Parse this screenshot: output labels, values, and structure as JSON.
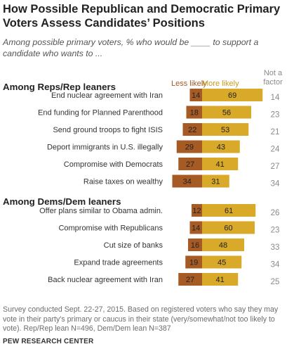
{
  "title": "How Possible Republican and Democratic Primary Voters Assess Candidates’ Positions",
  "subtitle": "Among possible primary voters, % who would be ____ to support a candidate who wants to ...",
  "headers": {
    "less_likely": "Less likely",
    "more_likely": "More likely",
    "not_a_factor": "Not a factor"
  },
  "colors": {
    "less_likely": "#a65a24",
    "more_likely": "#d9a929",
    "not_a_factor_text": "#8a8a8a"
  },
  "chart_data": {
    "type": "bar",
    "subtype": "diverging-stacked",
    "series_names": [
      "Less likely",
      "More likely",
      "Not a factor"
    ],
    "groups": [
      {
        "name": "Among Reps/Rep leaners",
        "rows": [
          {
            "label": "End nuclear agreement with Iran",
            "less": 14,
            "more": 69,
            "not_factor": 14
          },
          {
            "label": "End funding for Planned Parenthood",
            "less": 18,
            "more": 56,
            "not_factor": 23
          },
          {
            "label": "Send ground troops to fight ISIS",
            "less": 22,
            "more": 53,
            "not_factor": 21
          },
          {
            "label": "Deport immigrants in U.S. illegally",
            "less": 29,
            "more": 43,
            "not_factor": 24
          },
          {
            "label": "Compromise with Democrats",
            "less": 27,
            "more": 41,
            "not_factor": 27
          },
          {
            "label": "Raise taxes on wealthy",
            "less": 34,
            "more": 31,
            "not_factor": 34
          }
        ]
      },
      {
        "name": "Among Dems/Dem leaners",
        "rows": [
          {
            "label": "Offer plans similar to Obama admin.",
            "less": 12,
            "more": 61,
            "not_factor": 26
          },
          {
            "label": "Compromise with Republicans",
            "less": 14,
            "more": 60,
            "not_factor": 23
          },
          {
            "label": "Cut size of banks",
            "less": 16,
            "more": 48,
            "not_factor": 33
          },
          {
            "label": "Expand trade agreements",
            "less": 19,
            "more": 45,
            "not_factor": 34
          },
          {
            "label": "Back nuclear agreement with Iran",
            "less": 27,
            "more": 41,
            "not_factor": 25
          }
        ]
      }
    ]
  },
  "note": "Survey conducted Sept. 22-27, 2015. Based on registered voters who say they may vote in their party’s primary or caucus in their state (very/somewhat/not too likely to vote). Rep/Rep lean N=496, Dem/Dem lean N=387",
  "source": "PEW RESEARCH CENTER"
}
